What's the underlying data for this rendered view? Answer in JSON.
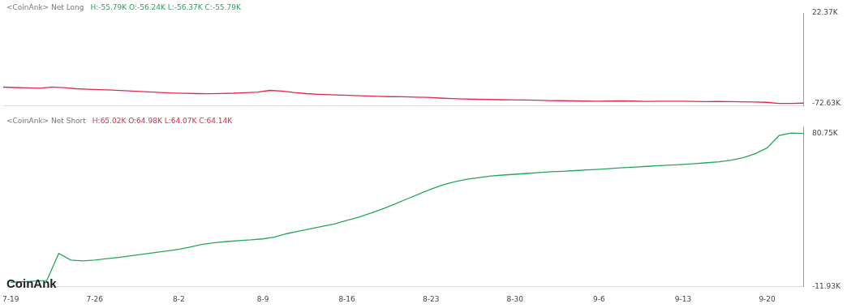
{
  "chart_data": [
    {
      "type": "line",
      "title": "<CoinAnk> Net Long",
      "annotation": "H:-55.79K O:-56.24K L:-56.37K C:-55.79K",
      "categories": [
        "7-19",
        null,
        null,
        null,
        null,
        null,
        null,
        "7-26",
        null,
        null,
        null,
        null,
        null,
        null,
        "8-2",
        null,
        null,
        null,
        null,
        null,
        null,
        "8-9",
        null,
        null,
        null,
        null,
        null,
        null,
        "8-16",
        null,
        null,
        null,
        null,
        null,
        null,
        "8-23",
        null,
        null,
        null,
        null,
        null,
        null,
        "8-30",
        null,
        null,
        null,
        null,
        null,
        null,
        "9-6",
        null,
        null,
        null,
        null,
        null,
        null,
        "9-13",
        null,
        null,
        null,
        null,
        null,
        null,
        "9-20",
        null,
        null,
        null
      ],
      "values": [
        -55.8,
        -56.2,
        -56.6,
        -57.0,
        -55.6,
        -56.4,
        -57.5,
        -58.0,
        -58.4,
        -58.9,
        -59.5,
        -60.1,
        -60.8,
        -61.5,
        -62.0,
        -62.3,
        -62.6,
        -62.8,
        -62.5,
        -62.2,
        -61.6,
        -61.0,
        -59.2,
        -60.0,
        -61.5,
        -62.6,
        -63.3,
        -63.8,
        -64.2,
        -64.6,
        -65.1,
        -65.5,
        -65.8,
        -66.0,
        -66.3,
        -66.6,
        -67.3,
        -67.9,
        -68.3,
        -68.6,
        -68.8,
        -69.0,
        -69.2,
        -69.4,
        -69.6,
        -69.9,
        -70.1,
        -70.3,
        -70.5,
        -70.7,
        -70.5,
        -70.3,
        -70.5,
        -70.8,
        -70.7,
        -70.6,
        -70.6,
        -70.8,
        -71.0,
        -70.9,
        -71.1,
        -71.3,
        -71.5,
        -71.8,
        -73.0,
        -72.9,
        -72.63
      ],
      "color": "#e0294a",
      "ylim": [
        -75,
        22.37
      ],
      "yticks": [
        {
          "value": -72.63,
          "label": "-72.63K"
        },
        {
          "value": 22.37,
          "label": "22.37K"
        }
      ],
      "grid": false,
      "tick_labels": "y"
    },
    {
      "type": "line",
      "title": "<CoinAnk> Net Short",
      "annotation": "H:65.02K O:64.98K L:64.07K C:64.14K",
      "watermark": "CoinAnk",
      "categories": [
        "7-19",
        null,
        null,
        null,
        null,
        null,
        null,
        "7-26",
        null,
        null,
        null,
        null,
        null,
        null,
        "8-2",
        null,
        null,
        null,
        null,
        null,
        null,
        "8-9",
        null,
        null,
        null,
        null,
        null,
        null,
        "8-16",
        null,
        null,
        null,
        null,
        null,
        null,
        "8-23",
        null,
        null,
        null,
        null,
        null,
        null,
        "8-30",
        null,
        null,
        null,
        null,
        null,
        null,
        "9-6",
        null,
        null,
        null,
        null,
        null,
        null,
        "9-13",
        null,
        null,
        null,
        null,
        null,
        null,
        "9-20",
        null,
        null,
        null
      ],
      "values": [
        -9.5,
        -9.2,
        -8.8,
        -8.5,
        8.0,
        4.0,
        3.5,
        4.0,
        4.8,
        5.6,
        6.5,
        7.5,
        8.5,
        9.5,
        10.5,
        12.0,
        13.5,
        14.5,
        15.2,
        15.8,
        16.2,
        16.8,
        18.0,
        20.0,
        21.5,
        23.0,
        24.5,
        26.0,
        28.0,
        30.0,
        32.5,
        35.0,
        38.0,
        41.0,
        44.0,
        47.0,
        49.5,
        51.5,
        53.0,
        54.0,
        55.0,
        55.5,
        56.0,
        56.5,
        57.0,
        57.5,
        57.8,
        58.2,
        58.6,
        59.0,
        59.5,
        60.0,
        60.4,
        60.8,
        61.2,
        61.6,
        62.0,
        62.5,
        63.0,
        63.6,
        64.5,
        66.0,
        68.5,
        72.0,
        79.5,
        81.0,
        80.75
      ],
      "color": "#26a65b",
      "ylim": [
        -11.93,
        85
      ],
      "yticks": [
        {
          "value": -11.93,
          "label": "-11.93K"
        },
        {
          "value": 80.75,
          "label": "80.75K"
        }
      ],
      "grid": false
    }
  ]
}
